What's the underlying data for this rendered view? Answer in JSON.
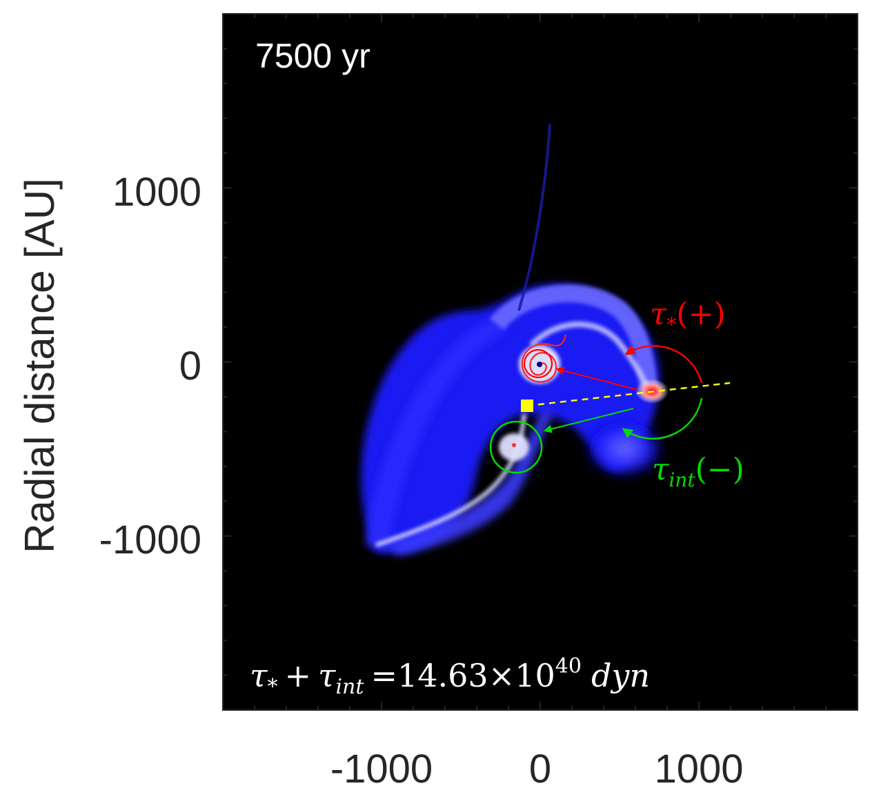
{
  "chart_data": {
    "type": "heatmap",
    "title": "",
    "time_label": "7500 yr",
    "ylabel": "Radial distance [AU]",
    "xlabel": "",
    "xlim": [
      -2000,
      2000
    ],
    "ylim": [
      -2000,
      2000
    ],
    "x_ticks": [
      -1000,
      0,
      1000
    ],
    "y_ticks": [
      1000,
      0,
      -1000
    ],
    "x_tick_labels": [
      "-1000",
      "0",
      "1000"
    ],
    "y_tick_labels": [
      "1000",
      "0",
      "-1000"
    ],
    "colormap": [
      "#000000",
      "#0000ff",
      "#ffffff",
      "#ff0000"
    ],
    "grid": false,
    "annotations": {
      "tau_star": {
        "symbol": "τ",
        "subscript": "*",
        "sign": "(+)",
        "color": "#ff0000"
      },
      "tau_int": {
        "symbol": "τ",
        "subscript": "int",
        "sign": "(−)",
        "color": "#00dd00"
      },
      "torque_sum": {
        "lhs": "τ",
        "sub1": "*",
        "plus": "+",
        "sub2": "int",
        "equals": "=",
        "mantissa": "14.63",
        "times": "×10",
        "exponent": "40",
        "unit": "dyn"
      }
    },
    "markers": {
      "fragment_center": {
        "x": -10,
        "y": 0,
        "color": "#ff0000"
      },
      "fragment_right": {
        "x": 720,
        "y": -160,
        "color": "#ff0000"
      },
      "fragment_lower": {
        "x": -160,
        "y": -470,
        "color": "#00dd00"
      },
      "center_of_mass": {
        "x": -80,
        "y": -240,
        "color": "#ffff00"
      }
    },
    "reference_line": {
      "x": [
        -80,
        1200
      ],
      "y": [
        -240,
        -120
      ],
      "style": "dashed",
      "color": "#ffff00"
    },
    "arrows": [
      {
        "from": [
          620,
          -130
        ],
        "to": [
          100,
          0
        ],
        "color": "#ff0000"
      },
      {
        "from": [
          590,
          -250
        ],
        "to": [
          20,
          -430
        ],
        "color": "#00dd00"
      }
    ]
  }
}
